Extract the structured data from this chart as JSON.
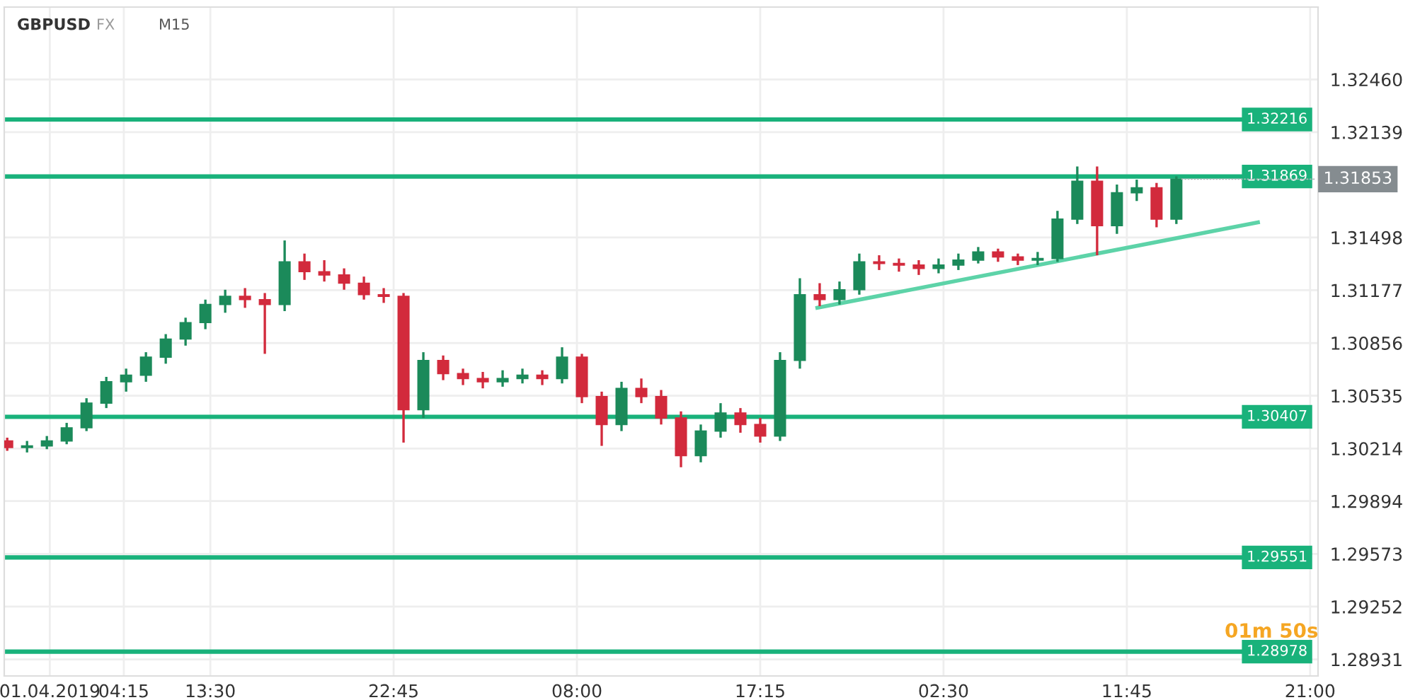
{
  "chart_data": {
    "type": "candlestick",
    "title": "GBPUSD",
    "annotations": [
      "FX",
      "M15",
      "01m 50s",
      {
        "text": "1.31853",
        "x": "2019-04-03T14:15",
        "y": 1.31853
      }
    ],
    "x": [
      "2019-04-01T03:15",
      "2019-04-01T04:15",
      "2019-04-01T05:15",
      "2019-04-01T06:15",
      "2019-04-01T07:15",
      "2019-04-01T08:15",
      "2019-04-01T09:15",
      "2019-04-01T10:15",
      "2019-04-01T11:15",
      "2019-04-01T12:15",
      "2019-04-01T13:15",
      "2019-04-01T14:15",
      "2019-04-01T15:15",
      "2019-04-01T16:15",
      "2019-04-01T17:15",
      "2019-04-01T18:15",
      "2019-04-01T19:15",
      "2019-04-01T20:15",
      "2019-04-01T21:15",
      "2019-04-01T22:15",
      "2019-04-01T23:15",
      "2019-04-02T00:15",
      "2019-04-02T01:15",
      "2019-04-02T02:15",
      "2019-04-02T03:15",
      "2019-04-02T04:15",
      "2019-04-02T05:15",
      "2019-04-02T06:15",
      "2019-04-02T07:15",
      "2019-04-02T08:15",
      "2019-04-02T09:15",
      "2019-04-02T10:15",
      "2019-04-02T11:15",
      "2019-04-02T12:15",
      "2019-04-02T13:15",
      "2019-04-02T14:15",
      "2019-04-02T15:15",
      "2019-04-02T16:15",
      "2019-04-02T17:15",
      "2019-04-02T18:15",
      "2019-04-02T19:15",
      "2019-04-02T20:15",
      "2019-04-02T21:15",
      "2019-04-02T22:15",
      "2019-04-02T23:15",
      "2019-04-03T00:15",
      "2019-04-03T01:15",
      "2019-04-03T02:15",
      "2019-04-03T03:15",
      "2019-04-03T04:15",
      "2019-04-03T05:15",
      "2019-04-03T06:15",
      "2019-04-03T07:15",
      "2019-04-03T08:15",
      "2019-04-03T09:15",
      "2019-04-03T10:15",
      "2019-04-03T11:15",
      "2019-04-03T12:15",
      "2019-04-03T13:15",
      "2019-04-03T14:15"
    ],
    "ohlc": [
      [
        1.3026,
        1.3028,
        1.302,
        1.3022
      ],
      [
        1.3022,
        1.3026,
        1.3019,
        1.3023
      ],
      [
        1.3023,
        1.3029,
        1.3021,
        1.3026
      ],
      [
        1.3026,
        1.3037,
        1.3024,
        1.3034
      ],
      [
        1.3034,
        1.3052,
        1.3032,
        1.3049
      ],
      [
        1.3049,
        1.3065,
        1.3046,
        1.3062
      ],
      [
        1.3062,
        1.307,
        1.3056,
        1.3066
      ],
      [
        1.3066,
        1.308,
        1.3062,
        1.3077
      ],
      [
        1.3077,
        1.3091,
        1.3073,
        1.3088
      ],
      [
        1.3088,
        1.3101,
        1.3084,
        1.3098
      ],
      [
        1.3098,
        1.3112,
        1.3094,
        1.3109
      ],
      [
        1.3109,
        1.3118,
        1.3104,
        1.3114
      ],
      [
        1.3114,
        1.3119,
        1.3107,
        1.3112
      ],
      [
        1.3112,
        1.3116,
        1.3079,
        1.3109
      ],
      [
        1.3109,
        1.3148,
        1.3105,
        1.3135
      ],
      [
        1.3135,
        1.314,
        1.3124,
        1.3129
      ],
      [
        1.3129,
        1.3136,
        1.3123,
        1.3127
      ],
      [
        1.3127,
        1.3131,
        1.3118,
        1.3122
      ],
      [
        1.3122,
        1.3126,
        1.3112,
        1.3115
      ],
      [
        1.3115,
        1.3119,
        1.311,
        1.3114
      ],
      [
        1.3114,
        1.3116,
        1.3025,
        1.3045
      ],
      [
        1.3045,
        1.308,
        1.304,
        1.3075
      ],
      [
        1.3075,
        1.3078,
        1.3063,
        1.3067
      ],
      [
        1.3067,
        1.307,
        1.306,
        1.3064
      ],
      [
        1.3064,
        1.3068,
        1.3058,
        1.3062
      ],
      [
        1.3062,
        1.3069,
        1.3059,
        1.3064
      ],
      [
        1.3064,
        1.307,
        1.3061,
        1.3066
      ],
      [
        1.3066,
        1.3069,
        1.306,
        1.3064
      ],
      [
        1.3064,
        1.3083,
        1.3061,
        1.3077
      ],
      [
        1.3077,
        1.3079,
        1.3049,
        1.3053
      ],
      [
        1.3053,
        1.3056,
        1.3023,
        1.3036
      ],
      [
        1.3036,
        1.3062,
        1.3032,
        1.3058
      ],
      [
        1.3058,
        1.3064,
        1.3049,
        1.3053
      ],
      [
        1.3053,
        1.3057,
        1.3036,
        1.304
      ],
      [
        1.304,
        1.3044,
        1.301,
        1.3017
      ],
      [
        1.3017,
        1.3036,
        1.3013,
        1.3032
      ],
      [
        1.3032,
        1.3049,
        1.3028,
        1.3043
      ],
      [
        1.3043,
        1.3046,
        1.3031,
        1.3036
      ],
      [
        1.3036,
        1.304,
        1.3025,
        1.3029
      ],
      [
        1.3029,
        1.308,
        1.3026,
        1.3075
      ],
      [
        1.3075,
        1.3125,
        1.307,
        1.3115
      ],
      [
        1.3115,
        1.3122,
        1.3108,
        1.3112
      ],
      [
        1.3112,
        1.3123,
        1.3109,
        1.3118
      ],
      [
        1.3118,
        1.314,
        1.3115,
        1.3135
      ],
      [
        1.3135,
        1.3139,
        1.313,
        1.3134
      ],
      [
        1.3134,
        1.3137,
        1.3129,
        1.3133
      ],
      [
        1.3133,
        1.3136,
        1.3127,
        1.3131
      ],
      [
        1.3131,
        1.3137,
        1.3128,
        1.3133
      ],
      [
        1.3133,
        1.314,
        1.313,
        1.3136
      ],
      [
        1.3136,
        1.3144,
        1.3134,
        1.3141
      ],
      [
        1.3141,
        1.3143,
        1.3135,
        1.3138
      ],
      [
        1.3138,
        1.314,
        1.3133,
        1.3136
      ],
      [
        1.3136,
        1.3141,
        1.3133,
        1.3137
      ],
      [
        1.3137,
        1.3166,
        1.3135,
        1.3161
      ],
      [
        1.3161,
        1.3193,
        1.3158,
        1.3184
      ],
      [
        1.3184,
        1.3193,
        1.3139,
        1.3157
      ],
      [
        1.3157,
        1.3182,
        1.3152,
        1.3177
      ],
      [
        1.3177,
        1.3185,
        1.3172,
        1.318
      ],
      [
        1.318,
        1.3183,
        1.3156,
        1.3161
      ],
      [
        1.3161,
        1.3187,
        1.3158,
        1.31853
      ]
    ],
    "series": [
      {
        "type": "line",
        "x": [
          "2019-04-02T20:08",
          "2019-04-03T18:22"
        ],
        "values": [
          1.3107,
          1.3159
        ],
        "color": "#5dd3a8"
      }
    ],
    "ref_lines": [
      {
        "axis": "y",
        "value": 1.32216,
        "label": "1.32216",
        "color": "#19b27b"
      },
      {
        "axis": "y",
        "value": 1.31869,
        "label": "1.31869",
        "color": "#19b27b"
      },
      {
        "axis": "y",
        "value": 1.30407,
        "label": "1.30407",
        "color": "#19b27b"
      },
      {
        "axis": "y",
        "value": 1.29551,
        "label": "1.29551",
        "color": "#19b27b"
      },
      {
        "axis": "y",
        "value": 1.28978,
        "label": "1.28978",
        "color": "#19b27b"
      }
    ],
    "xlim": [
      "2019-04-01T03:06",
      "2019-04-03T21:24"
    ],
    "xticks": [
      {
        "value": "2019-04-01T05:24",
        "label": "01.04.2019"
      },
      {
        "value": "2019-04-01T09:08",
        "label": "04:15"
      },
      {
        "value": "2019-04-01T13:30",
        "label": "13:30"
      },
      {
        "value": "2019-04-01T22:45",
        "label": "22:45"
      },
      {
        "value": "2019-04-02T08:00",
        "label": "08:00"
      },
      {
        "value": "2019-04-02T17:15",
        "label": "17:15"
      },
      {
        "value": "2019-04-03T02:30",
        "label": "02:30"
      },
      {
        "value": "2019-04-03T11:45",
        "label": "11:45"
      },
      {
        "value": "2019-04-03T21:00",
        "label": "21:00"
      }
    ],
    "ylim": [
      1.2883,
      1.329
    ],
    "yticks": [
      {
        "value": 1.3246,
        "label": "1.32460"
      },
      {
        "value": 1.32139,
        "label": "1.32139"
      },
      {
        "value": 1.31498,
        "label": "1.31498"
      },
      {
        "value": 1.31177,
        "label": "1.31177"
      },
      {
        "value": 1.30856,
        "label": "1.30856"
      },
      {
        "value": 1.30535,
        "label": "1.30535"
      },
      {
        "value": 1.30214,
        "label": "1.30214"
      },
      {
        "value": 1.29894,
        "label": "1.29894"
      },
      {
        "value": 1.29573,
        "label": "1.29573"
      },
      {
        "value": 1.29252,
        "label": "1.29252"
      },
      {
        "value": 1.28931,
        "label": "1.28931"
      }
    ],
    "grid": true
  }
}
